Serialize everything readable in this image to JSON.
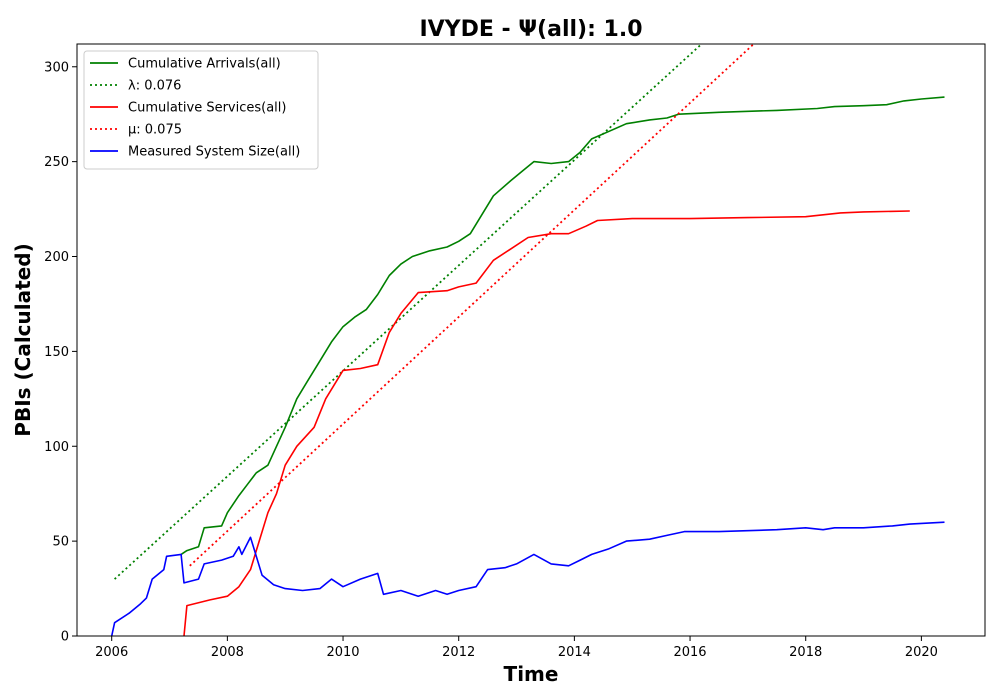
{
  "chart_data": {
    "type": "line",
    "title": "IVYDE -  Ψ(all): 1.0",
    "xlabel": "Time",
    "ylabel": "PBIs (Calculated)",
    "xlim": [
      2005.4,
      2021.1
    ],
    "ylim": [
      0,
      312
    ],
    "x_ticks": [
      2006,
      2008,
      2010,
      2012,
      2014,
      2016,
      2018,
      2020
    ],
    "y_ticks": [
      0,
      50,
      100,
      150,
      200,
      250,
      300
    ],
    "legend_position": "upper-left",
    "grid": false,
    "series": [
      {
        "name": "Cumulative Arrivals(all)",
        "color": "#008000",
        "style": "solid",
        "points": [
          [
            2007.2,
            43
          ],
          [
            2007.3,
            45
          ],
          [
            2007.5,
            47
          ],
          [
            2007.6,
            57
          ],
          [
            2007.9,
            58
          ],
          [
            2008.0,
            65
          ],
          [
            2008.2,
            74
          ],
          [
            2008.35,
            80
          ],
          [
            2008.5,
            86
          ],
          [
            2008.7,
            90
          ],
          [
            2008.85,
            100
          ],
          [
            2009.0,
            110
          ],
          [
            2009.2,
            125
          ],
          [
            2009.4,
            135
          ],
          [
            2009.6,
            145
          ],
          [
            2009.8,
            155
          ],
          [
            2010.0,
            163
          ],
          [
            2010.2,
            168
          ],
          [
            2010.4,
            172
          ],
          [
            2010.6,
            180
          ],
          [
            2010.8,
            190
          ],
          [
            2011.0,
            196
          ],
          [
            2011.2,
            200
          ],
          [
            2011.5,
            203
          ],
          [
            2011.8,
            205
          ],
          [
            2012.0,
            208
          ],
          [
            2012.2,
            212
          ],
          [
            2012.4,
            222
          ],
          [
            2012.6,
            232
          ],
          [
            2012.9,
            240
          ],
          [
            2013.1,
            245
          ],
          [
            2013.3,
            250
          ],
          [
            2013.6,
            249
          ],
          [
            2013.9,
            250
          ],
          [
            2014.1,
            255
          ],
          [
            2014.3,
            262
          ],
          [
            2014.6,
            266
          ],
          [
            2014.9,
            270
          ],
          [
            2015.3,
            272
          ],
          [
            2015.6,
            273
          ],
          [
            2015.8,
            275
          ],
          [
            2016.5,
            276
          ],
          [
            2017.5,
            277
          ],
          [
            2018.2,
            278
          ],
          [
            2018.5,
            279
          ],
          [
            2019.0,
            279.5
          ],
          [
            2019.4,
            280
          ],
          [
            2019.7,
            282
          ],
          [
            2020.0,
            283
          ],
          [
            2020.4,
            284
          ]
        ]
      },
      {
        "name": "λ: 0.076",
        "color": "#008000",
        "style": "dotted",
        "points": [
          [
            2006.05,
            30
          ],
          [
            2016.2,
            312
          ]
        ]
      },
      {
        "name": "Cumulative Services(all)",
        "color": "#ff0000",
        "style": "solid",
        "points": [
          [
            2007.25,
            0
          ],
          [
            2007.3,
            16
          ],
          [
            2007.7,
            19
          ],
          [
            2008.0,
            21
          ],
          [
            2008.2,
            26
          ],
          [
            2008.4,
            35
          ],
          [
            2008.55,
            50
          ],
          [
            2008.7,
            65
          ],
          [
            2008.85,
            75
          ],
          [
            2009.0,
            90
          ],
          [
            2009.2,
            100
          ],
          [
            2009.5,
            110
          ],
          [
            2009.7,
            125
          ],
          [
            2009.9,
            135
          ],
          [
            2010.0,
            140
          ],
          [
            2010.3,
            141
          ],
          [
            2010.6,
            143
          ],
          [
            2010.8,
            160
          ],
          [
            2011.0,
            170
          ],
          [
            2011.3,
            181
          ],
          [
            2011.8,
            182
          ],
          [
            2012.0,
            184
          ],
          [
            2012.3,
            186
          ],
          [
            2012.6,
            198
          ],
          [
            2012.9,
            204
          ],
          [
            2013.2,
            210
          ],
          [
            2013.6,
            212
          ],
          [
            2013.9,
            212
          ],
          [
            2014.2,
            216
          ],
          [
            2014.4,
            219
          ],
          [
            2015.0,
            220
          ],
          [
            2016.0,
            220
          ],
          [
            2017.0,
            220.5
          ],
          [
            2018.0,
            221
          ],
          [
            2018.3,
            222
          ],
          [
            2018.6,
            223
          ],
          [
            2019.0,
            223.5
          ],
          [
            2019.8,
            224
          ]
        ]
      },
      {
        "name": "μ: 0.075",
        "color": "#ff0000",
        "style": "dotted",
        "points": [
          [
            2007.35,
            37
          ],
          [
            2017.1,
            312
          ]
        ]
      },
      {
        "name": "Measured System Size(all)",
        "color": "#0000ff",
        "style": "solid",
        "points": [
          [
            2006.0,
            0
          ],
          [
            2006.05,
            7
          ],
          [
            2006.3,
            12
          ],
          [
            2006.5,
            17
          ],
          [
            2006.6,
            20
          ],
          [
            2006.7,
            30
          ],
          [
            2006.9,
            35
          ],
          [
            2006.95,
            42
          ],
          [
            2007.2,
            43
          ],
          [
            2007.25,
            28
          ],
          [
            2007.5,
            30
          ],
          [
            2007.6,
            38
          ],
          [
            2007.9,
            40
          ],
          [
            2008.1,
            42
          ],
          [
            2008.2,
            47
          ],
          [
            2008.25,
            43
          ],
          [
            2008.4,
            52
          ],
          [
            2008.6,
            32
          ],
          [
            2008.8,
            27
          ],
          [
            2009.0,
            25
          ],
          [
            2009.3,
            24
          ],
          [
            2009.6,
            25
          ],
          [
            2009.8,
            30
          ],
          [
            2010.0,
            26
          ],
          [
            2010.3,
            30
          ],
          [
            2010.6,
            33
          ],
          [
            2010.7,
            22
          ],
          [
            2011.0,
            24
          ],
          [
            2011.3,
            21
          ],
          [
            2011.6,
            24
          ],
          [
            2011.8,
            22
          ],
          [
            2012.0,
            24
          ],
          [
            2012.3,
            26
          ],
          [
            2012.5,
            35
          ],
          [
            2012.8,
            36
          ],
          [
            2013.0,
            38
          ],
          [
            2013.3,
            43
          ],
          [
            2013.6,
            38
          ],
          [
            2013.9,
            37
          ],
          [
            2014.1,
            40
          ],
          [
            2014.3,
            43
          ],
          [
            2014.6,
            46
          ],
          [
            2014.9,
            50
          ],
          [
            2015.3,
            51
          ],
          [
            2015.6,
            53
          ],
          [
            2015.9,
            55
          ],
          [
            2016.5,
            55
          ],
          [
            2017.5,
            56
          ],
          [
            2018.0,
            57
          ],
          [
            2018.3,
            56
          ],
          [
            2018.5,
            57
          ],
          [
            2019.0,
            57
          ],
          [
            2019.5,
            58
          ],
          [
            2019.8,
            59
          ],
          [
            2020.4,
            60
          ]
        ]
      }
    ]
  }
}
